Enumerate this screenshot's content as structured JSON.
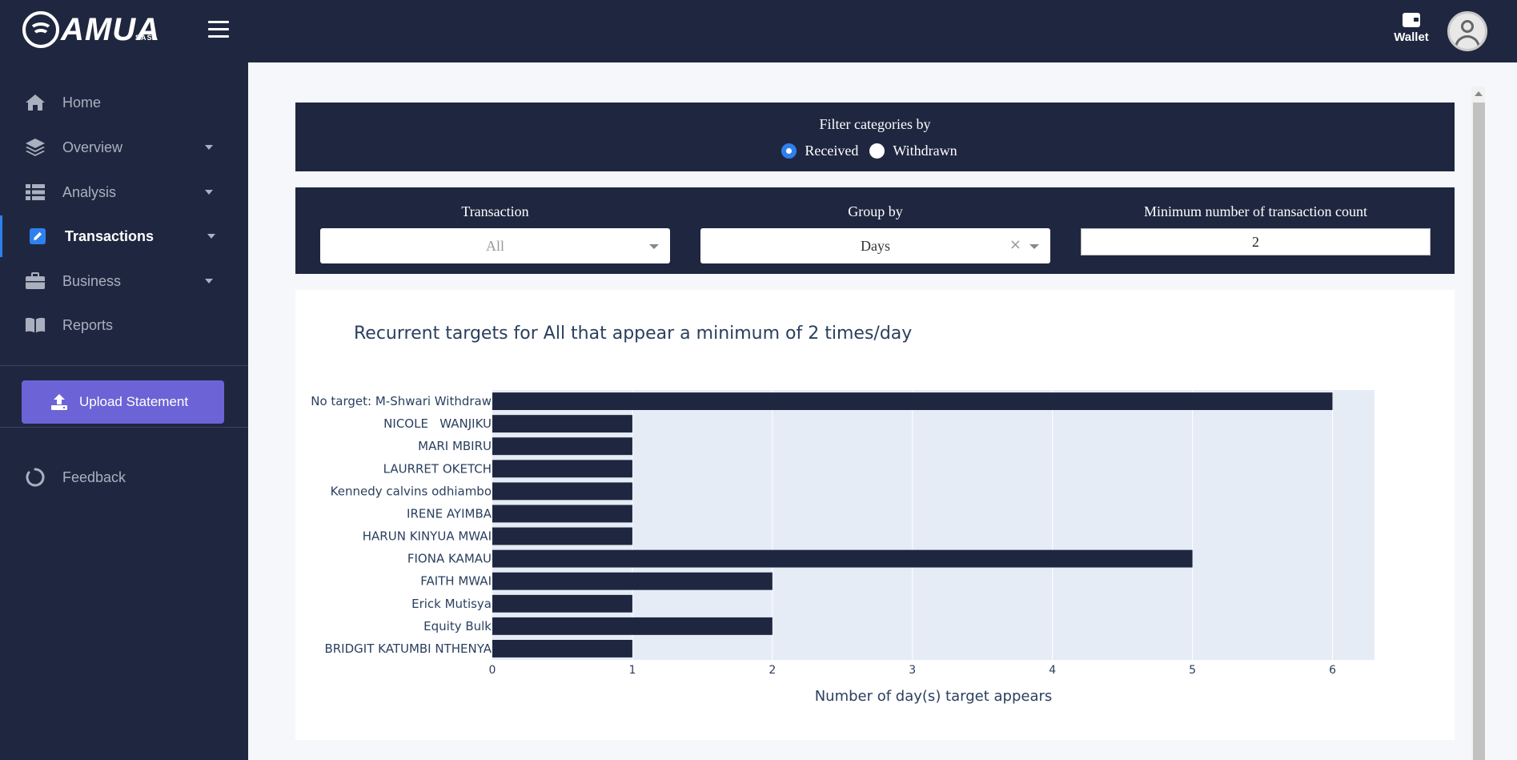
{
  "header": {
    "logo_text": "AMUA",
    "logo_sub": "SASA",
    "wallet_label": "Wallet"
  },
  "sidebar": {
    "items": [
      {
        "label": "Home",
        "icon": "home-icon"
      },
      {
        "label": "Overview",
        "icon": "layers-icon",
        "has_submenu": true
      },
      {
        "label": "Analysis",
        "icon": "table-icon",
        "has_submenu": true
      },
      {
        "label": "Transactions",
        "icon": "edit-icon",
        "has_submenu": true,
        "active": true
      },
      {
        "label": "Business",
        "icon": "briefcase-icon",
        "has_submenu": true
      },
      {
        "label": "Reports",
        "icon": "book-icon"
      }
    ],
    "upload_label": "Upload Statement",
    "feedback_label": "Feedback"
  },
  "filter": {
    "title": "Filter categories by",
    "options": [
      "Received",
      "Withdrawn"
    ],
    "selected": "Received"
  },
  "controls": {
    "transaction_label": "Transaction",
    "transaction_value": "All",
    "groupby_label": "Group by",
    "groupby_value": "Days",
    "groupby_clear": "×",
    "mincount_label": "Minimum number of transaction count",
    "mincount_value": "2"
  },
  "chart_data": {
    "type": "bar",
    "orientation": "horizontal",
    "title": "Recurrent targets for All that appear a minimum of 2 times/day",
    "xlabel": "Number of day(s) target appears",
    "ylabel": "",
    "categories": [
      "No target: M-Shwari Withdraw",
      "NICOLE   WANJIKU",
      "MARI MBIRU",
      "LAURRET OKETCH",
      "Kennedy calvins odhiambo",
      "IRENE AYIMBA",
      "HARUN KINYUA MWAI",
      "FIONA KAMAU",
      "FAITH MWAI",
      "Erick Mutisya",
      "Equity Bulk",
      "BRIDGIT KATUMBI NTHENYA"
    ],
    "values": [
      6,
      1,
      1,
      1,
      1,
      1,
      1,
      5,
      2,
      1,
      2,
      1
    ],
    "xticks": [
      0,
      1,
      2,
      3,
      4,
      5,
      6
    ],
    "xlim": [
      0,
      6.3
    ],
    "grid": true,
    "bar_color": "#1f2740",
    "plot_bg": "#e5ecf6"
  }
}
